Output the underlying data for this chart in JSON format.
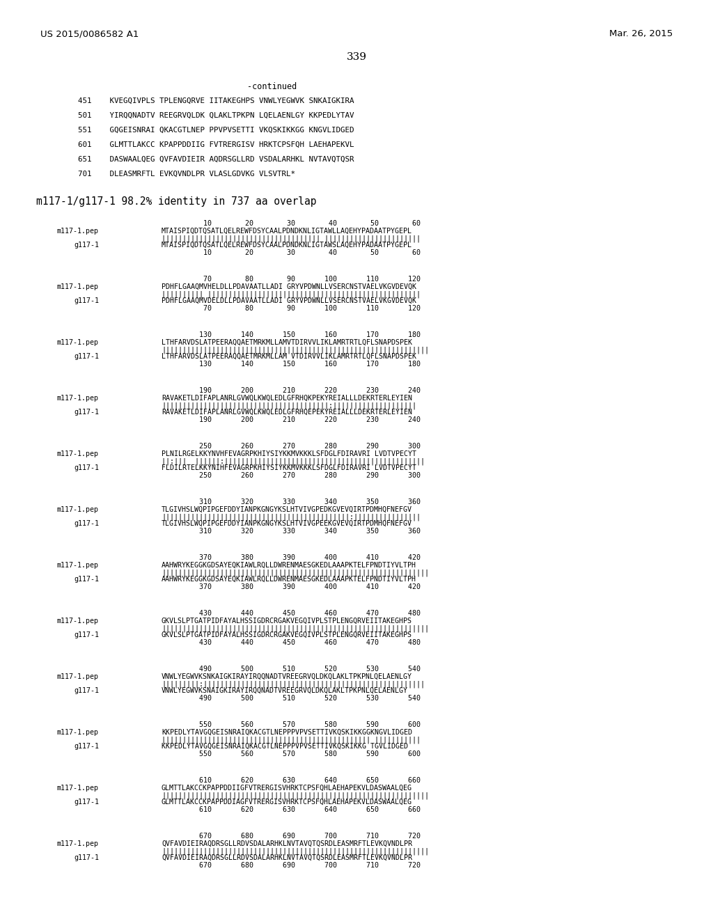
{
  "header_left": "US 2015/0086582 A1",
  "header_right": "Mar. 26, 2015",
  "page_number": "339",
  "continued_label": "-continued",
  "background_color": "#ffffff",
  "text_color": "#000000",
  "top_sequence_lines": [
    "451    KVEGQIVPLS TPLENGQRVE IITAKEGHPS VNWLYEGWVK SNKAIGKIRA",
    "501    YIRQQNADTV REEGRVQLDK QLAKLTPKPN LQELAENLGY KKPEDLYTAV",
    "551    GQGEISNRAI QKACGTLNEP PPVPVSETTI VKQSKIKKGG KNGVLIDGED",
    "601    GLMTTLAKCC KPAPPDDIIG FVTRERGISV HRKTCPSFQH LAEHAPEKVL",
    "651    DASWAALQEG QVFAVDIEIR AQDRSGLLRD VSDALARHKL NVTAVQTQSR",
    "701    DLEASMRFTL EVKQVNDLPR VLASLGDVKG VLSVTRL*"
  ],
  "identity_line": "m117-1/g117-1 98.2% identity in 737 aa overlap",
  "alignment_blocks": [
    {
      "num_line_top": "          10        20        30        40        50        60",
      "seq1_label": "m117-1.pep",
      "seq1": "MTAISPIQDTQSATLQELREWFDSYCAALPDNDKNLIGTAWLLAQEHYPADAATPYGEPL",
      "match": "|||||||||||||||||||||||||||||||||||||| |||||||||||||||||||||||",
      "seq2_label": "g117-1",
      "seq2": "MTAISPIQDTQSATLQELREWFDSYCAALPDNDKNLIGTAWSLAQEHYPADAATPYGEPL",
      "num_line_bot": "          10        20        30        40        50        60"
    },
    {
      "num_line_top": "          70        80        90       100       110       120",
      "seq1_label": "m117-1.pep",
      "seq1": "PDHFLGAAQMVHELDLLPDAVAATLLADI GRYVPDWNLLVSERCNSTVAELVKGVDEVQK",
      "match": "|||||||||| |||||||||||||||||||||||||||||||||||||||||||||||||||",
      "seq2_label": "g117-1",
      "seq2": "PDHFLGAAQMVDELDLLPDAVAATLLADI GRYVPDWNLLVSERCNSTVAELVKGVDEVQK",
      "num_line_bot": "          70        80        90       100       110       120"
    },
    {
      "num_line_top": "         130       140       150       160       170       180",
      "seq1_label": "m117-1.pep",
      "seq1": "LTHFARVDSLATPEERAQQAETMRKMLLAMVTDIRVVLIKLAMRTRTLQFLSNAPDSPEK",
      "match": "||||||||||||||||||||||||||||||||||||||||||||||||||||||||||||||||",
      "seq2_label": "g117-1",
      "seq2": "LTHFARVDSLATPEERAQQAETMRKMLLAM VTDIRVVLIKLAMRTRTLQFLSNAPDSPEK",
      "num_line_bot": "         130       140       150       160       170       180"
    },
    {
      "num_line_top": "         190       200       210       220       230       240",
      "seq1_label": "m117-1.pep",
      "seq1": "RAVAKETLDIFAPLANRLGVWQLKWQLEDLGFRHQKPEKYREIALLLDEKRTERLEYIEN",
      "match": "||||||||||||||||||||||||||||||||||||||||:||||||||||||||||||||",
      "seq2_label": "g117-1",
      "seq2": "RAVAKETLDIFAPLANRLGVWQLKWQLEDLGFRHQEPEKYREIALLLDEKRTERLEYIEN",
      "num_line_bot": "         190       200       210       220       230       240"
    },
    {
      "num_line_top": "         250       260       270       280       290       300",
      "seq1_label": "m117-1.pep",
      "seq1": "PLNILRGELKKYNVHFEVAGRPKHIYSIYKKМVKKKLSFDGLFDIRAVRI LVDTVPECYT",
      "match": "||:|||  ||||||:||||||||||||||||||||||||||||||||||||||||||||||||",
      "seq2_label": "g117-1",
      "seq2": "FLDILRTELKKYNIHFEVAGRPKHIYSIYKKМVKKKLSFDGLFDIRAVRI LVDTVPECYT",
      "num_line_bot": "         250       260       270       280       290       300"
    },
    {
      "num_line_top": "         310       320       330       340       350       360",
      "seq1_label": "m117-1.pep",
      "seq1": "TLGIVHSLWQPIPGEFDDYIANPKGNGYKSLHTVIVGPEDKGVEVQIRTPDMHQFNEFGV",
      "match": "|||||||||||||||||||||||||||||||||||||||||||||:||||||||||||||||",
      "seq2_label": "g117-1",
      "seq2": "TLGIVHSLWQPIPGEFDDYIANPKGNGYKSLHTVIVGPEEKGVEVQIRTPDMHQFNEFGV",
      "num_line_bot": "         310       320       330       340       350       360"
    },
    {
      "num_line_top": "         370       380       390       400       410       420",
      "seq1_label": "m117-1.pep",
      "seq1": "AAHWRYKEGGKGDSAYEQKIAWLRQLLDWRENMAESGKEDLAAAPKTELFPNDTIYVLTPH",
      "match": "||||||||||||||||||||||||||||||||||||||||||||||||||||||||||||||||",
      "seq2_label": "g117-1",
      "seq2": "AAHWRYKEGGKGDSAYEQKIAWLRQLLDWRENMAESGKEDLAAAPKTELFPNDTIYVLTPH",
      "num_line_bot": "         370       380       390       400       410       420"
    },
    {
      "num_line_top": "         430       440       450       460       470       480",
      "seq1_label": "m117-1.pep",
      "seq1": "GKVLSLPTGATPIDFAYALHSSIGDRCRGAKVEGQIVPLSTPLENGQRVEIITAKEGHPS",
      "match": "||||||||||||||||||||||||||||||||||||||||||||||||||||||||||||||||",
      "seq2_label": "g117-1",
      "seq2": "GKVLSLPTGATPIDFAYALHSSIGDRCRGAKVEGQIVPLSTPLENGQRVEIITAKEGHPS",
      "num_line_bot": "         430       440       450       460       470       480"
    },
    {
      "num_line_top": "         490       500       510       520       530       540",
      "seq1_label": "m117-1.pep",
      "seq1": "VNWLYEGWVKSNKAIGKIRAYIRQQNADTVREEGRVQLDKQLAKLTPKPNLQELAENLGY",
      "match": "|||||||||:|||||||||||||||||||||||||||||||||||||||||||||||||||||",
      "seq2_label": "g117-1",
      "seq2": "VNWLYEGWVKSNAIGKIRAYIRQQNADTVREEGRVQLDKQLAKLTPKPNLQELAENLGY",
      "num_line_bot": "         490       500       510       520       530       540"
    },
    {
      "num_line_top": "         550       560       570       580       590       600",
      "seq1_label": "m117-1.pep",
      "seq1": "KKPEDLYTAVGQGEISNRAIQKACGTLNEPPPVPVSETTIVKQSKIKKGGKNGVLIDGED",
      "match": "|||||||||||||||||||||||||||||||||||||||||||||||||| |||||||||||",
      "seq2_label": "g117-1",
      "seq2": "KKPEDLYTAVGQGEISNRAIQKACGTLNEPPPVPVSETTIVKQSKIKKG TGVLIDGED",
      "num_line_bot": "         550       560       570       580       590       600"
    },
    {
      "num_line_top": "         610       620       630       640       650       660",
      "seq1_label": "m117-1.pep",
      "seq1": "GLMTTLAKCCKPAPPDDIIGFVTRERGISVHRKTCPSFQHLAEHAPEKVLDASWAALQEG",
      "match": "||||||||||||||||||||||||||||||||||||||||||||||||||||||||||||||||",
      "seq2_label": "g117-1",
      "seq2": "GLMTTLAKCCKPAPPDDIAGFVTRERGISVHRKTCPSFQHLAEHAPEKVLDASWAALQEG",
      "num_line_bot": "         610       620       630       640       650       660"
    },
    {
      "num_line_top": "         670       680       690       700       710       720",
      "seq1_label": "m117-1.pep",
      "seq1": "QVFAVDIEIRAQDRSGLLRDVSDALARHKLNVTAVQTQSRDLEASMRFTLEVKQVNDLPR",
      "match": "||||||||||||||||||||||||||||||||||||||||||||||||||||||||||||||||",
      "seq2_label": "g117-1",
      "seq2": "QVFAVDIEIRAQDRSGLLRDVSDALARHKLNVTAVQTQSRDLEASMRFTLEVKQVNDLPR",
      "num_line_bot": "         670       680       690       700       710       720"
    }
  ]
}
